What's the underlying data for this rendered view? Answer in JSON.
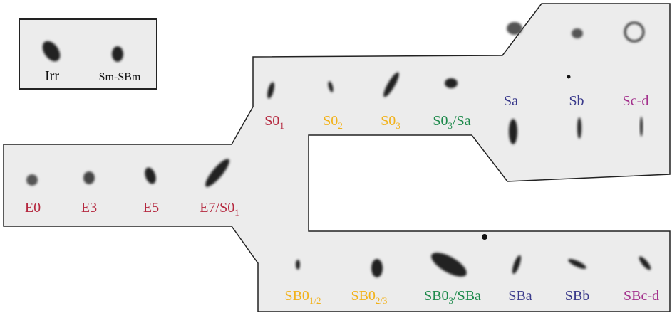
{
  "inset": {
    "labels": [
      {
        "text": "Irr"
      },
      {
        "text": "Sm-SBm"
      }
    ]
  },
  "labels": [
    {
      "text": "E0",
      "color": "#b5283f"
    },
    {
      "text": "E3",
      "color": "#b5283f"
    },
    {
      "text": "E5",
      "color": "#b5283f"
    },
    {
      "text": "E7/S0",
      "sub": "1",
      "color": "#b5283f"
    },
    {
      "text": "S0",
      "sub": "1",
      "color": "#b5283f"
    },
    {
      "text": "S0",
      "sub": "2",
      "color": "#f2b21b"
    },
    {
      "text": "S0",
      "sub": "3",
      "color": "#f2b21b"
    },
    {
      "text": "S0",
      "sub": "3",
      "after": "/Sa",
      "color": "#1e8a4c"
    },
    {
      "text": "Sa",
      "color": "#3b3b8c"
    },
    {
      "text": "Sb",
      "color": "#3b3b8c"
    },
    {
      "text": "Sc-d",
      "color": "#a3308c"
    },
    {
      "text": "SB0",
      "sub": "1/2",
      "color": "#f2b21b"
    },
    {
      "text": "SB0",
      "sub": "2/3",
      "color": "#f2b21b"
    },
    {
      "text": "SB0",
      "sub": "3",
      "after": "/SBa",
      "color": "#1e8a4c"
    },
    {
      "text": "SBa",
      "color": "#3b3b8c"
    },
    {
      "text": "SBb",
      "color": "#3b3b8c"
    },
    {
      "text": "SBc-d",
      "color": "#a3308c"
    }
  ]
}
